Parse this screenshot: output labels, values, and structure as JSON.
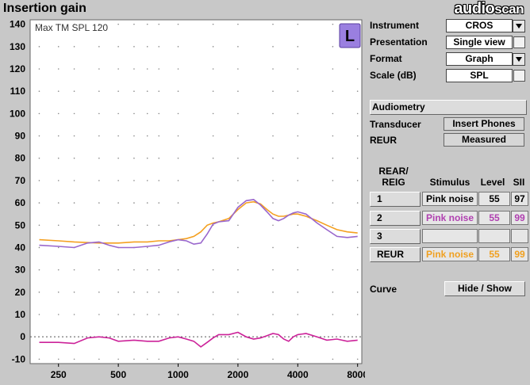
{
  "window": {
    "title": "Insertion gain",
    "brand_part1": "audio",
    "brand_part2": "scan"
  },
  "chart_data": {
    "type": "line",
    "annotation": "Max TM SPL 120",
    "ear_badge": "L",
    "ylim": [
      -12,
      142
    ],
    "yticks": [
      -10,
      0,
      10,
      20,
      30,
      40,
      50,
      60,
      70,
      80,
      90,
      100,
      110,
      120,
      130,
      140
    ],
    "xscale": "log",
    "xlim": [
      180,
      8400
    ],
    "xticks": [
      250,
      500,
      1000,
      2000,
      4000,
      8000
    ],
    "xtick_labels": [
      "250",
      "500",
      "1000",
      "2000",
      "4000",
      "8000"
    ],
    "grid": "dotted",
    "reference_line": 0,
    "series": [
      {
        "color": "#f4a020",
        "x": [
          200,
          250,
          300,
          400,
          500,
          600,
          700,
          800,
          900,
          1000,
          1100,
          1200,
          1300,
          1400,
          1500,
          1600,
          1800,
          2000,
          2200,
          2400,
          2600,
          2800,
          3000,
          3200,
          3400,
          3600,
          3800,
          4000,
          4400,
          5000,
          5600,
          6300,
          7100,
          8000
        ],
        "y": [
          43.5,
          43,
          42.5,
          42,
          42,
          42.5,
          42.5,
          43,
          43,
          43.5,
          44,
          45,
          47,
          50,
          51,
          51.5,
          53,
          57,
          60,
          60.5,
          59.5,
          57,
          55,
          54,
          54,
          54.5,
          55,
          55,
          54,
          52,
          50,
          48,
          47,
          46.5
        ]
      },
      {
        "color": "#9966cc",
        "x": [
          200,
          250,
          300,
          350,
          400,
          450,
          500,
          600,
          700,
          800,
          900,
          1000,
          1100,
          1200,
          1300,
          1400,
          1500,
          1600,
          1800,
          2000,
          2200,
          2400,
          2600,
          2800,
          3000,
          3200,
          3400,
          3600,
          3800,
          4000,
          4400,
          5000,
          5600,
          6300,
          7100,
          8000
        ],
        "y": [
          41,
          40.5,
          40,
          42,
          42.5,
          41,
          40,
          40,
          40.5,
          41,
          42.5,
          43.5,
          43,
          41.5,
          42,
          46,
          50.5,
          51.5,
          52,
          58,
          61,
          61.5,
          59,
          56,
          53,
          52,
          53,
          54.5,
          55.5,
          56,
          55,
          51,
          48,
          45,
          44.5,
          45
        ]
      },
      {
        "color": "#cc2299",
        "x": [
          200,
          250,
          300,
          350,
          400,
          450,
          500,
          600,
          700,
          800,
          900,
          1000,
          1100,
          1200,
          1300,
          1400,
          1500,
          1600,
          1800,
          2000,
          2200,
          2400,
          2600,
          2800,
          3000,
          3200,
          3400,
          3600,
          3800,
          4000,
          4400,
          5000,
          5600,
          6300,
          7100,
          8000
        ],
        "y": [
          -2.5,
          -2.5,
          -3,
          -0.5,
          0,
          -0.5,
          -2,
          -1.5,
          -2,
          -2,
          -0.5,
          0,
          -1,
          -2,
          -4.5,
          -2.5,
          -0.5,
          1,
          1,
          2,
          0,
          -1,
          -0.5,
          0.5,
          1.5,
          1,
          -1,
          -2,
          0,
          1,
          1.5,
          0,
          -1.5,
          -1,
          -2,
          -1.5
        ]
      }
    ]
  },
  "panel": {
    "instrument_label": "Instrument",
    "instrument_value": "CROS",
    "presentation_label": "Presentation",
    "presentation_value": "Single view",
    "format_label": "Format",
    "format_value": "Graph",
    "scale_label": "Scale (dB)",
    "scale_value": "SPL",
    "audiometry_button": "Audiometry",
    "transducer_label": "Transducer",
    "transducer_value": "Insert Phones",
    "reur_label": "REUR",
    "reur_value": "Measured",
    "table_header_col1_line1": "REAR/",
    "table_header_col1_line2": "REIG",
    "table_header_stimulus": "Stimulus",
    "table_header_level": "Level",
    "table_header_sii": "SII",
    "rows": [
      {
        "button": "1",
        "stimulus": "Pink noise",
        "level": "55",
        "sii": "97",
        "color": "#000000"
      },
      {
        "button": "2",
        "stimulus": "Pink noise",
        "level": "55",
        "sii": "99",
        "color": "#b040b0"
      },
      {
        "button": "3",
        "stimulus": "",
        "level": "",
        "sii": "",
        "color": "#000000"
      },
      {
        "button": "REUR",
        "stimulus": "Pink noise",
        "level": "55",
        "sii": "99",
        "color": "#f0a020"
      }
    ],
    "curve_label": "Curve",
    "curve_button": "Hide / Show"
  }
}
